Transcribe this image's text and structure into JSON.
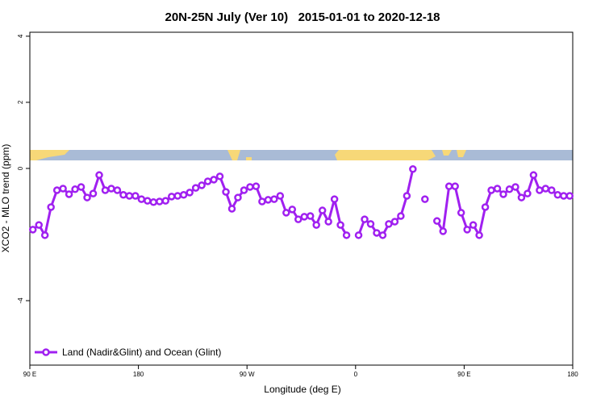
{
  "chart_data": {
    "type": "line",
    "title": "20N-25N July (Ver 10)   2015-01-01 to 2020-12-18",
    "xlabel": "Longitude (deg E)",
    "ylabel": "XCO2 - MLO trend (ppm)",
    "xlim": [
      90,
      540
    ],
    "ylim": [
      -5.95,
      4.12
    ],
    "xticks": [
      {
        "value": 90,
        "label": "90 E"
      },
      180,
      {
        "value": 270,
        "label": "90 W"
      },
      {
        "value": 360,
        "label": "0"
      },
      {
        "value": 450,
        "label": "90 E"
      },
      {
        "value": 540,
        "label": "180"
      }
    ],
    "yticks": [
      -4,
      0,
      2,
      4
    ],
    "legend": "bottom left",
    "x": [
      92.5,
      97.5,
      102.5,
      107.5,
      112.5,
      117.5,
      122.5,
      127.5,
      132.5,
      137.5,
      142.5,
      147.5,
      152.5,
      157.5,
      162.5,
      167.5,
      172.5,
      177.5,
      182.5,
      187.5,
      192.5,
      197.5,
      202.5,
      207.5,
      212.5,
      217.5,
      222.5,
      227.5,
      232.5,
      237.5,
      242.5,
      247.5,
      252.5,
      257.5,
      262.5,
      267.5,
      272.5,
      277.5,
      282.5,
      287.5,
      292.5,
      297.5,
      302.5,
      307.5,
      312.5,
      317.5,
      322.5,
      327.5,
      332.5,
      337.5,
      342.5,
      347.5,
      352.5,
      357.5,
      362.5,
      367.5,
      372.5,
      377.5,
      382.5,
      387.5,
      392.5,
      397.5,
      402.5,
      407.5,
      412.5,
      417.5,
      422.5,
      427.5,
      432.5,
      437.5,
      442.5,
      447.5,
      452.5,
      457.5,
      462.5,
      467.5,
      472.5,
      477.5,
      482.5,
      487.5,
      492.5,
      497.5,
      502.5,
      507.5,
      512.5,
      517.5,
      522.5,
      527.5,
      532.5,
      537.5
    ],
    "series": [
      {
        "name": "Land (Nadir&Glint) and Ocean (Glint)",
        "color": "#a020f0",
        "values": [
          -1.85,
          -1.71,
          -2.02,
          -1.17,
          -0.66,
          -0.61,
          -0.78,
          -0.63,
          -0.56,
          -0.88,
          -0.76,
          -0.2,
          -0.66,
          -0.61,
          -0.66,
          -0.8,
          -0.83,
          -0.83,
          -0.93,
          -0.98,
          -1.02,
          -1.0,
          -0.98,
          -0.85,
          -0.83,
          -0.8,
          -0.73,
          -0.59,
          -0.51,
          -0.39,
          -0.34,
          -0.24,
          -0.71,
          -1.22,
          -0.88,
          -0.66,
          -0.56,
          -0.54,
          -1.0,
          -0.95,
          -0.93,
          -0.83,
          -1.34,
          -1.24,
          -1.54,
          -1.46,
          -1.44,
          -1.71,
          -1.27,
          -1.61,
          -0.93,
          -1.71,
          -2.02,
          null,
          -2.02,
          -1.54,
          -1.68,
          -1.95,
          -2.02,
          -1.68,
          -1.61,
          -1.44,
          -0.83,
          -0.02,
          null,
          -0.93,
          null,
          -1.59,
          -1.9,
          -0.54,
          -0.54,
          -1.34,
          -1.85,
          -1.71,
          -2.02,
          -1.17,
          -0.66,
          -0.61,
          -0.78,
          -0.63,
          -0.56,
          -0.88,
          -0.76,
          -0.2,
          -0.66,
          -0.61,
          -0.66,
          -0.8,
          -0.83,
          -0.83
        ]
      }
    ]
  }
}
